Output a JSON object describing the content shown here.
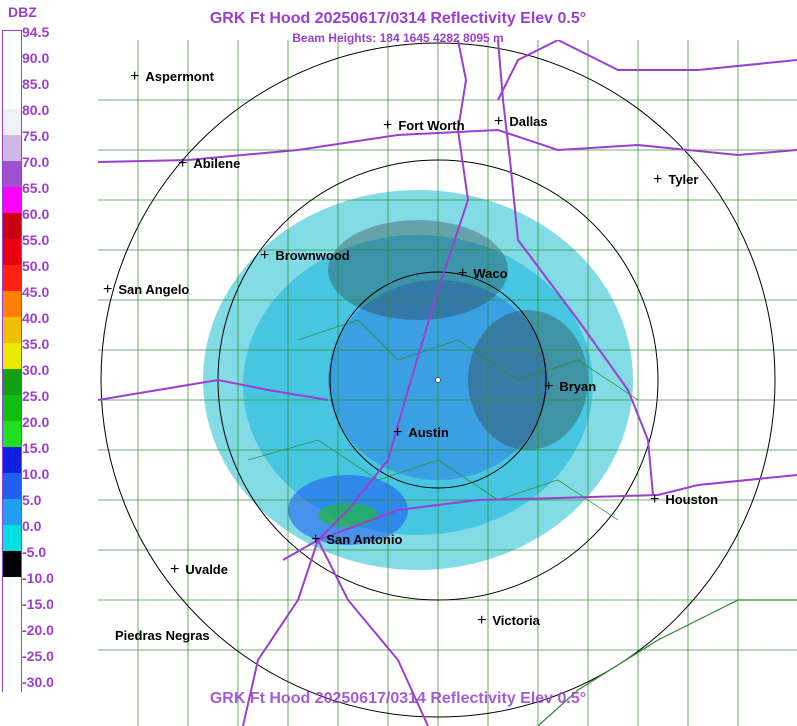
{
  "title": "GRK Ft Hood 20250617/0314 Reflectivity Elev 0.5°",
  "subtitle": "Beam Heights: 184 1645 4282 8095 m",
  "legend": {
    "unit": "DBZ",
    "values": [
      "94.5",
      "90.0",
      "85.0",
      "80.0",
      "75.0",
      "70.0",
      "65.0",
      "60.0",
      "55.0",
      "50.0",
      "45.0",
      "40.0",
      "35.0",
      "30.0",
      "25.0",
      "20.0",
      "15.0",
      "10.0",
      "5.0",
      "0.0",
      "-5.0",
      "-10.0",
      "-15.0",
      "-20.0",
      "-25.0",
      "-30.0"
    ],
    "colors": [
      "#ffffff",
      "#ffffff",
      "#ffffff",
      "#f0f0f8",
      "#d0b8e8",
      "#a050d0",
      "#ff00ff",
      "#c80010",
      "#e80010",
      "#ff2010",
      "#ff8000",
      "#f0c000",
      "#e8e800",
      "#10a010",
      "#10c010",
      "#20e020",
      "#1020e0",
      "#2060f0",
      "#20a0f0",
      "#00e0e0",
      "#000000",
      "#ffffff",
      "#ffffff",
      "#ffffff",
      "#ffffff",
      "#ffffff"
    ]
  },
  "cities": [
    {
      "name": "Aspermont"
    },
    {
      "name": "Fort Worth"
    },
    {
      "name": "Dallas"
    },
    {
      "name": "Abilene"
    },
    {
      "name": "Tyler"
    },
    {
      "name": "Brownwood"
    },
    {
      "name": "Waco"
    },
    {
      "name": "San Angelo"
    },
    {
      "name": "Bryan"
    },
    {
      "name": "Austin"
    },
    {
      "name": "Houston"
    },
    {
      "name": "San Antonio"
    },
    {
      "name": "Uvalde"
    },
    {
      "name": "Victoria"
    },
    {
      "name": "Piedras Negras"
    }
  ],
  "colors": {
    "text": "#9a3fd1",
    "roads": "#9a3fd1",
    "counties": "#2f8a2f",
    "rings": "#000000"
  }
}
